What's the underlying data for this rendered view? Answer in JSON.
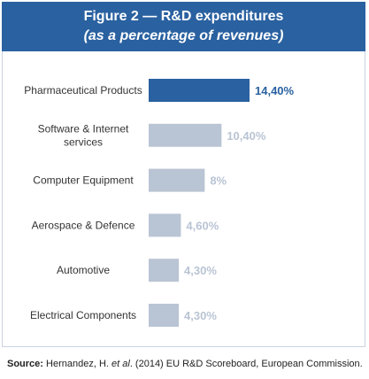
{
  "header": {
    "title": "Figure 2 — R&D expenditures",
    "subtitle": "(as a percentage of revenues)"
  },
  "chart_data": {
    "type": "bar",
    "orientation": "horizontal",
    "categories": [
      [
        "Pharmaceutical Products"
      ],
      [
        "Software & Internet",
        "services"
      ],
      [
        "Computer Equipment"
      ],
      [
        "Aerospace & Defence"
      ],
      [
        "Automotive"
      ],
      [
        "Electrical Components"
      ]
    ],
    "values": [
      14.4,
      10.4,
      8,
      4.6,
      4.3,
      4.3
    ],
    "value_labels": [
      "14,40%",
      "10,40%",
      "8%",
      "4,60%",
      "4,30%",
      "4,30%"
    ],
    "highlight_index": 0,
    "colors": {
      "highlight": "#2a61a0",
      "default": "#b9c4d4",
      "highlight_label": "#2a61a0",
      "default_label": "#b9c4d4"
    },
    "xlim": [
      0,
      14.4
    ],
    "grid": false,
    "legend": "none"
  },
  "source": {
    "label": "Source:",
    "text_before": " Hernandez, H. ",
    "italic": "et al",
    "text_after": ". (2014) EU R&D Scoreboard, European Commission."
  }
}
